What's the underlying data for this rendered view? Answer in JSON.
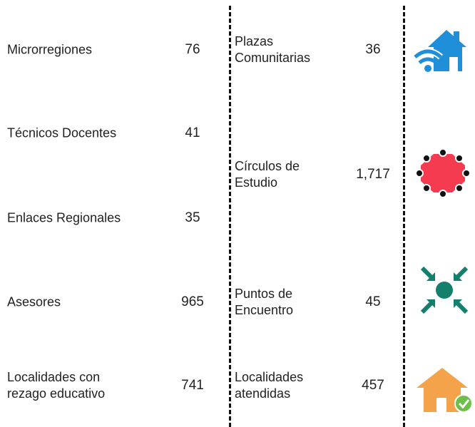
{
  "left": [
    {
      "label": [
        "Microrregiones"
      ],
      "value": "76"
    },
    {
      "label": [
        "Técnicos Docentes"
      ],
      "value": "41"
    },
    {
      "label": [
        "Enlaces Regionales"
      ],
      "value": "35"
    },
    {
      "label": [
        "Asesores"
      ],
      "value": "965"
    },
    {
      "label": [
        "Localidades con",
        "rezago educativo"
      ],
      "value": "741"
    }
  ],
  "middle": [
    {
      "label": [
        "Plazas",
        "Comunitarias"
      ],
      "value": "36"
    },
    {
      "label": [
        "Círculos de",
        "Estudio"
      ],
      "value": "1,717"
    },
    {
      "label": [
        "Puntos de",
        "Encuentro"
      ],
      "value": "45"
    },
    {
      "label": [
        "Localidades",
        "atendidas"
      ],
      "value": "457"
    }
  ]
}
